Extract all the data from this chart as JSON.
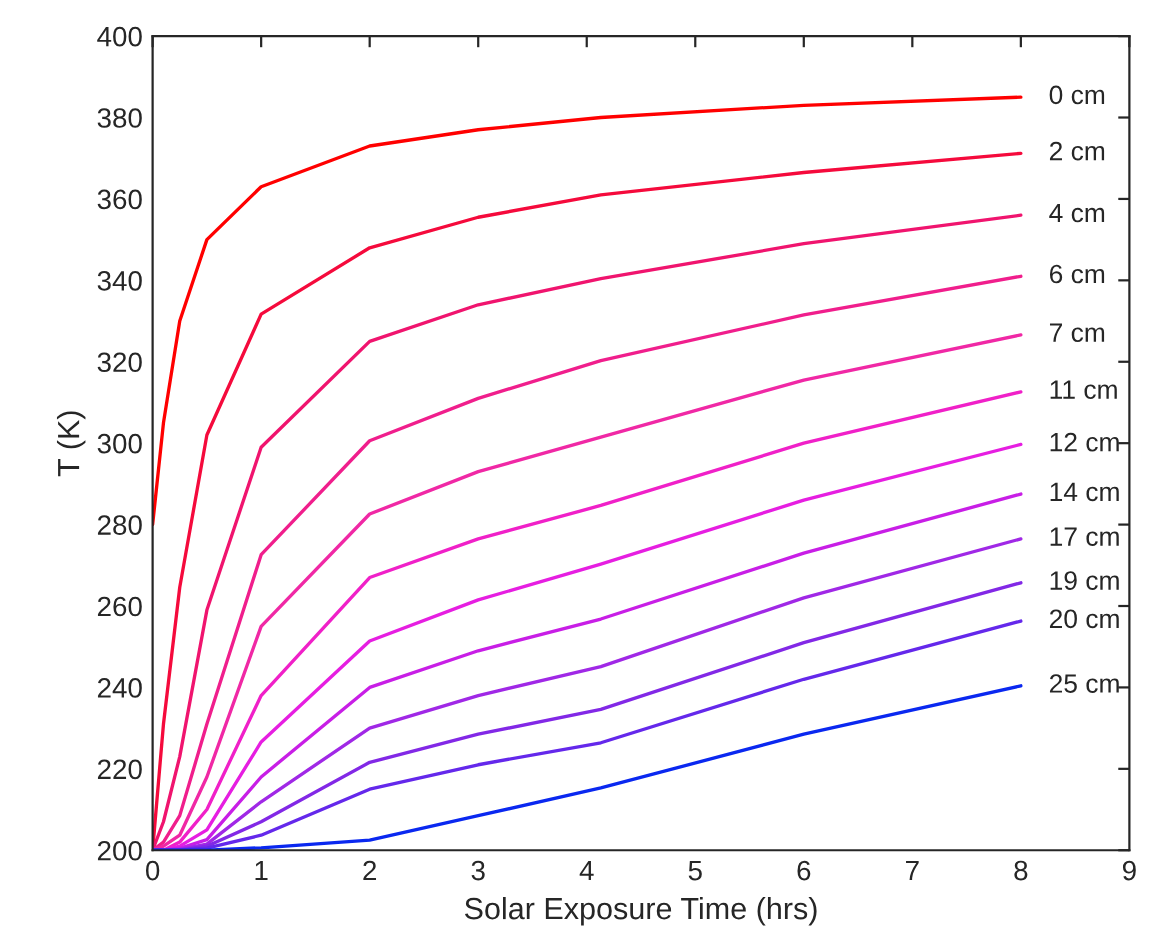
{
  "chart_data": {
    "type": "line",
    "xlabel": "Solar Exposure Time (hrs)",
    "ylabel": "T (K)",
    "xlim": [
      0,
      9
    ],
    "ylim": [
      200,
      400
    ],
    "xticks": [
      0,
      1,
      2,
      3,
      4,
      5,
      6,
      7,
      8,
      9
    ],
    "yticks": [
      200,
      220,
      240,
      260,
      280,
      300,
      320,
      340,
      360,
      380,
      400
    ],
    "grid": false,
    "legend": false,
    "marker": "none",
    "line_style": "solid",
    "x": [
      0,
      0.1,
      0.25,
      0.5,
      1,
      2,
      3,
      4.13,
      6,
      8
    ],
    "series": [
      {
        "name": "0 cm",
        "color": "#ff0000",
        "values": [
          280,
          305,
          330,
          350,
          363,
          373,
          377,
          380,
          383,
          385
        ]
      },
      {
        "name": "2 cm",
        "color": "#f50a3c",
        "values": [
          200,
          231,
          264.6,
          302,
          331.7,
          348,
          355.5,
          361,
          366.5,
          371.2
        ]
      },
      {
        "name": "4 cm",
        "color": "#f0146e",
        "values": [
          200,
          207,
          223,
          259,
          299,
          325,
          334,
          340.4,
          349,
          356
        ]
      },
      {
        "name": "6 cm",
        "color": "#f01e8c",
        "values": [
          200,
          202,
          208.5,
          231,
          272.6,
          300.6,
          311,
          320.3,
          331.5,
          341
        ]
      },
      {
        "name": "7 cm",
        "color": "#f028a5",
        "values": [
          200,
          201,
          203.7,
          218,
          255,
          282.6,
          293,
          301.5,
          315.5,
          326.6
        ]
      },
      {
        "name": "11 cm",
        "color": "#f020c8",
        "values": [
          200,
          200,
          202,
          210,
          238,
          267,
          276.5,
          284.7,
          300,
          312.6
        ]
      },
      {
        "name": "12 cm",
        "color": "#e61ee1",
        "values": [
          200,
          200,
          201,
          205,
          226.6,
          251.4,
          261.5,
          270.3,
          286,
          299.7
        ]
      },
      {
        "name": "14 cm",
        "color": "#c81ee6",
        "values": [
          200,
          200,
          200.5,
          202.6,
          218,
          240,
          249,
          256.8,
          273,
          287.5
        ]
      },
      {
        "name": "17 cm",
        "color": "#a028e6",
        "values": [
          200,
          200,
          200.2,
          201.5,
          211.9,
          230,
          238,
          245.1,
          262,
          276.5
        ]
      },
      {
        "name": "19 cm",
        "color": "#8228e6",
        "values": [
          200,
          200,
          200,
          201,
          207,
          221.6,
          228.5,
          234.6,
          251,
          265.7
        ]
      },
      {
        "name": "20 cm",
        "color": "#6428eb",
        "values": [
          200,
          200,
          200,
          200.5,
          203.7,
          215,
          221,
          226.4,
          242,
          256.3
        ]
      },
      {
        "name": "25 cm",
        "color": "#0a28f0",
        "values": [
          200,
          200,
          200,
          200,
          200.6,
          202.5,
          208.5,
          215.3,
          228.5,
          240.4
        ]
      }
    ]
  }
}
